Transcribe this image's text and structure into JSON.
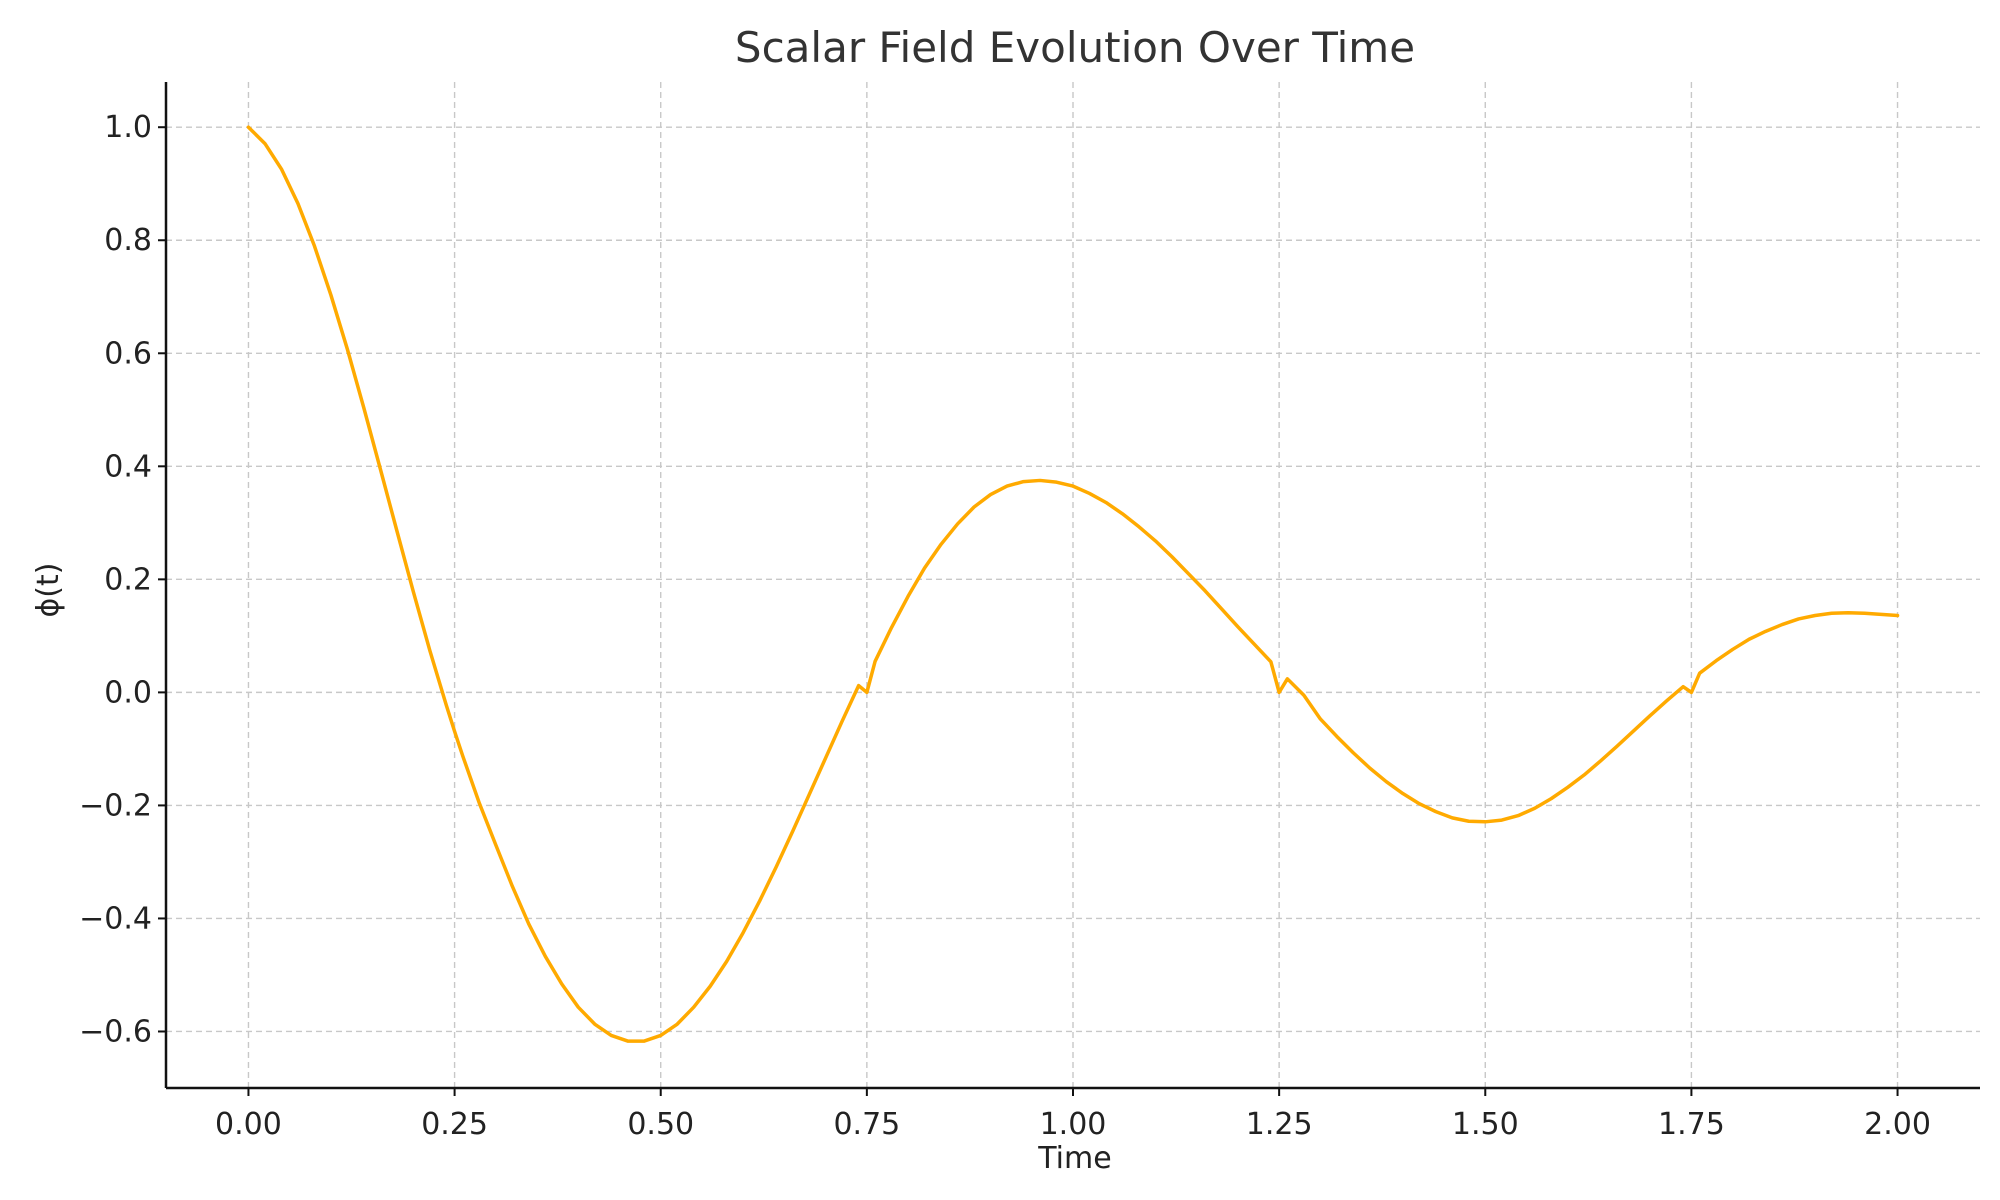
{
  "chart_data": {
    "type": "line",
    "title": "Scalar Field Evolution Over Time",
    "xlabel": "Time",
    "ylabel": "ϕ(t)",
    "xlim": [
      -0.1,
      2.1
    ],
    "ylim": [
      -0.7,
      1.08
    ],
    "xticks": [
      0.0,
      0.25,
      0.5,
      0.75,
      1.0,
      1.25,
      1.5,
      1.75,
      2.0
    ],
    "xtick_labels": [
      "0.00",
      "0.25",
      "0.50",
      "0.75",
      "1.00",
      "1.25",
      "1.50",
      "1.75",
      "2.00"
    ],
    "yticks": [
      -0.6,
      -0.4,
      -0.2,
      0.0,
      0.2,
      0.4,
      0.6,
      0.8,
      1.0
    ],
    "ytick_labels": [
      "−0.6",
      "−0.4",
      "−0.2",
      "0.0",
      "0.2",
      "0.4",
      "0.6",
      "0.8",
      "1.0"
    ],
    "grid": true,
    "line_color": "#FFAA00",
    "series": [
      {
        "x": [
          0.0,
          0.02,
          0.04,
          0.06,
          0.08,
          0.1,
          0.12,
          0.14,
          0.16,
          0.18,
          0.2,
          0.22,
          0.24,
          0.25,
          0.26,
          0.28,
          0.3,
          0.32,
          0.34,
          0.36,
          0.38,
          0.4,
          0.42,
          0.44,
          0.46,
          0.48,
          0.5,
          0.52,
          0.54,
          0.56,
          0.58,
          0.6,
          0.62,
          0.64,
          0.66,
          0.68,
          0.7,
          0.72,
          0.74,
          0.75,
          0.76,
          0.78,
          0.8,
          0.82,
          0.84,
          0.86,
          0.88,
          0.9,
          0.92,
          0.94,
          0.96,
          0.98,
          1.0,
          1.02,
          1.04,
          1.06,
          1.08,
          1.1,
          1.12,
          1.14,
          1.16,
          1.18,
          1.2,
          1.22,
          1.24,
          1.25,
          1.26,
          1.28,
          1.3,
          1.32,
          1.34,
          1.36,
          1.38,
          1.4,
          1.42,
          1.44,
          1.46,
          1.48,
          1.5,
          1.52,
          1.54,
          1.56,
          1.58,
          1.6,
          1.62,
          1.64,
          1.66,
          1.68,
          1.7,
          1.72,
          1.74,
          1.75,
          1.76,
          1.78,
          1.8,
          1.82,
          1.84,
          1.86,
          1.88,
          1.9,
          1.92,
          1.94,
          1.96,
          1.98,
          2.0
        ],
        "y": [
          1.0,
          0.971,
          0.926,
          0.865,
          0.79,
          0.703,
          0.607,
          0.503,
          0.395,
          0.286,
          0.178,
          0.074,
          -0.023,
          -0.069,
          -0.113,
          -0.196,
          -0.27,
          -0.343,
          -0.41,
          -0.467,
          -0.516,
          -0.557,
          -0.587,
          -0.607,
          -0.617,
          -0.617,
          -0.607,
          -0.587,
          -0.557,
          -0.52,
          -0.476,
          -0.425,
          -0.369,
          -0.309,
          -0.246,
          -0.181,
          -0.116,
          -0.051,
          0.012,
          0.0,
          0.055,
          0.115,
          0.17,
          0.22,
          0.262,
          0.298,
          0.328,
          0.35,
          0.365,
          0.373,
          0.375,
          0.372,
          0.365,
          0.352,
          0.336,
          0.316,
          0.293,
          0.268,
          0.24,
          0.21,
          0.18,
          0.148,
          0.116,
          0.085,
          0.054,
          0.0,
          0.024,
          -0.005,
          -0.047,
          -0.078,
          -0.107,
          -0.134,
          -0.158,
          -0.179,
          -0.197,
          -0.211,
          -0.222,
          -0.228,
          -0.229,
          -0.226,
          -0.218,
          -0.205,
          -0.188,
          -0.168,
          -0.146,
          -0.121,
          -0.095,
          -0.068,
          -0.041,
          -0.015,
          0.01,
          0.0,
          0.034,
          0.056,
          0.076,
          0.094,
          0.108,
          0.12,
          0.13,
          0.136,
          0.14,
          0.141,
          0.14,
          0.138,
          0.136
        ]
      }
    ]
  }
}
